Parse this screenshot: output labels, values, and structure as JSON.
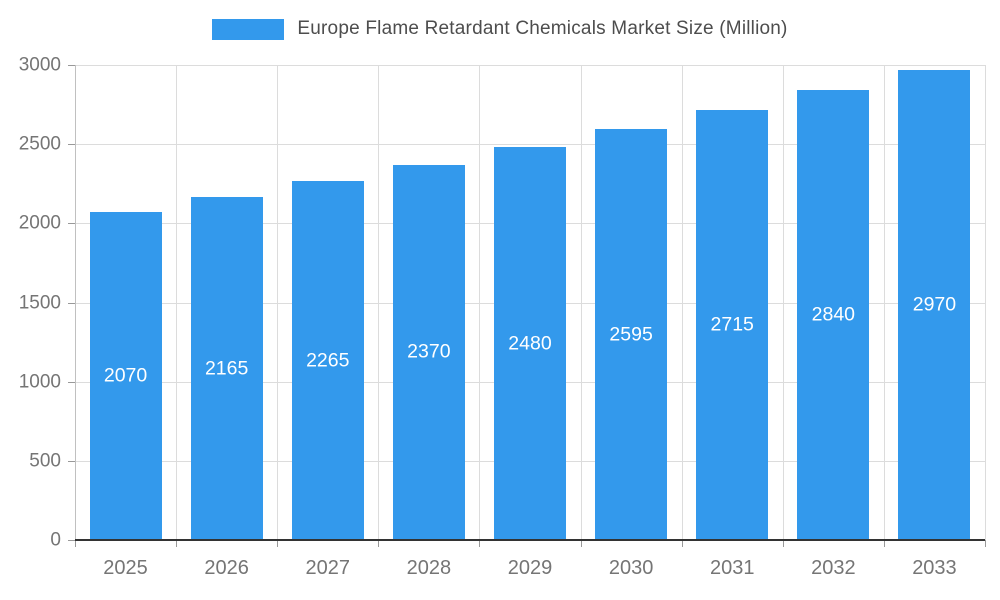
{
  "chart_data": {
    "type": "bar",
    "title": "Europe Flame Retardant Chemicals Market Size (Million)",
    "categories": [
      "2025",
      "2026",
      "2027",
      "2028",
      "2029",
      "2030",
      "2031",
      "2032",
      "2033"
    ],
    "values": [
      2070,
      2165,
      2265,
      2370,
      2480,
      2595,
      2715,
      2840,
      2970
    ],
    "xlabel": "",
    "ylabel": "",
    "ylim": [
      0,
      3000
    ],
    "yticks": [
      0,
      500,
      1000,
      1500,
      2000,
      2500,
      3000
    ],
    "grid": true,
    "legend_position": "top",
    "colors": {
      "bar": "#3399EC",
      "bar_label": "#FFFFFF",
      "grid": "#DCDCDC",
      "x_axis": "#333333",
      "y_axis": "#C0C0C0",
      "tick_mark": "#999999",
      "tick_label": "#757575",
      "title": "#4D4D4D",
      "background": "#FFFFFF"
    }
  }
}
